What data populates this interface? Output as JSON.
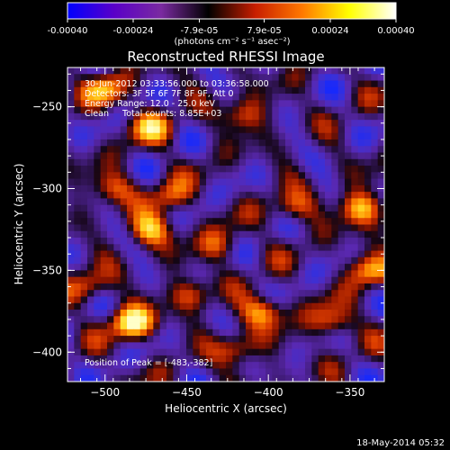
{
  "colorbar": {
    "ticks": [
      "-0.00040",
      "-0.00024",
      "-7.9e-05",
      "7.9e-05",
      "0.00024",
      "0.00040"
    ],
    "tick_values": [
      -0.0004,
      -0.00024,
      -7.9e-05,
      7.9e-05,
      0.00024,
      0.0004
    ],
    "range": [
      -0.0004,
      0.0004
    ],
    "unit_label": "(photons cm⁻² s⁻¹ asec⁻²)",
    "stops": [
      "#0000ff",
      "#5a00c8",
      "#7a2aa0",
      "#000000",
      "#c81e00",
      "#ff7800",
      "#ffff00",
      "#ffffff"
    ]
  },
  "chart_data": {
    "type": "heatmap",
    "title": "Reconstructed RHESSI Image",
    "xlabel": "Heliocentric X (arcsec)",
    "ylabel": "Heliocentric Y (arcsec)",
    "xlim": [
      -523,
      -329
    ],
    "ylim": [
      -418,
      -226
    ],
    "xticks": [
      -500,
      -450,
      -400,
      -350
    ],
    "yticks": [
      -250,
      -300,
      -350,
      -400
    ],
    "info_lines": [
      "30-Jun-2012 03:33:56.000 to 03:36:58.000",
      "Detectors: 3F 5F 6F 7F 8F 9F, Att 0",
      "Energy Range: 12.0 - 25.0 keV",
      "Clean     Total counts: 8.85E+03"
    ],
    "peak_label": "Position of Peak = [-483,-382]",
    "peak_position": [
      -483,
      -382
    ],
    "total_counts": 8850,
    "energy_range_kev": [
      12.0,
      25.0
    ],
    "bright_regions": [
      {
        "x": -500,
        "y": -240,
        "level": 0.6
      },
      {
        "x": -472,
        "y": -262,
        "level": 0.65
      },
      {
        "x": -472,
        "y": -325,
        "level": 0.75
      },
      {
        "x": -495,
        "y": -300,
        "level": 0.5
      },
      {
        "x": -460,
        "y": -305,
        "level": 0.5
      },
      {
        "x": -415,
        "y": -255,
        "level": 0.5
      },
      {
        "x": -385,
        "y": -312,
        "level": 0.5
      },
      {
        "x": -430,
        "y": -335,
        "level": 0.45
      },
      {
        "x": -343,
        "y": -312,
        "level": 0.8
      },
      {
        "x": -338,
        "y": -350,
        "level": 0.7
      },
      {
        "x": -403,
        "y": -375,
        "level": 0.7
      },
      {
        "x": -447,
        "y": -365,
        "level": 0.45
      },
      {
        "x": -483,
        "y": -382,
        "level": 1.0
      },
      {
        "x": -420,
        "y": -398,
        "level": 0.5
      },
      {
        "x": -360,
        "y": -382,
        "level": 0.6
      },
      {
        "x": -510,
        "y": -360,
        "level": 0.45
      }
    ]
  },
  "footer": {
    "date": "18-May-2014 05:32"
  }
}
